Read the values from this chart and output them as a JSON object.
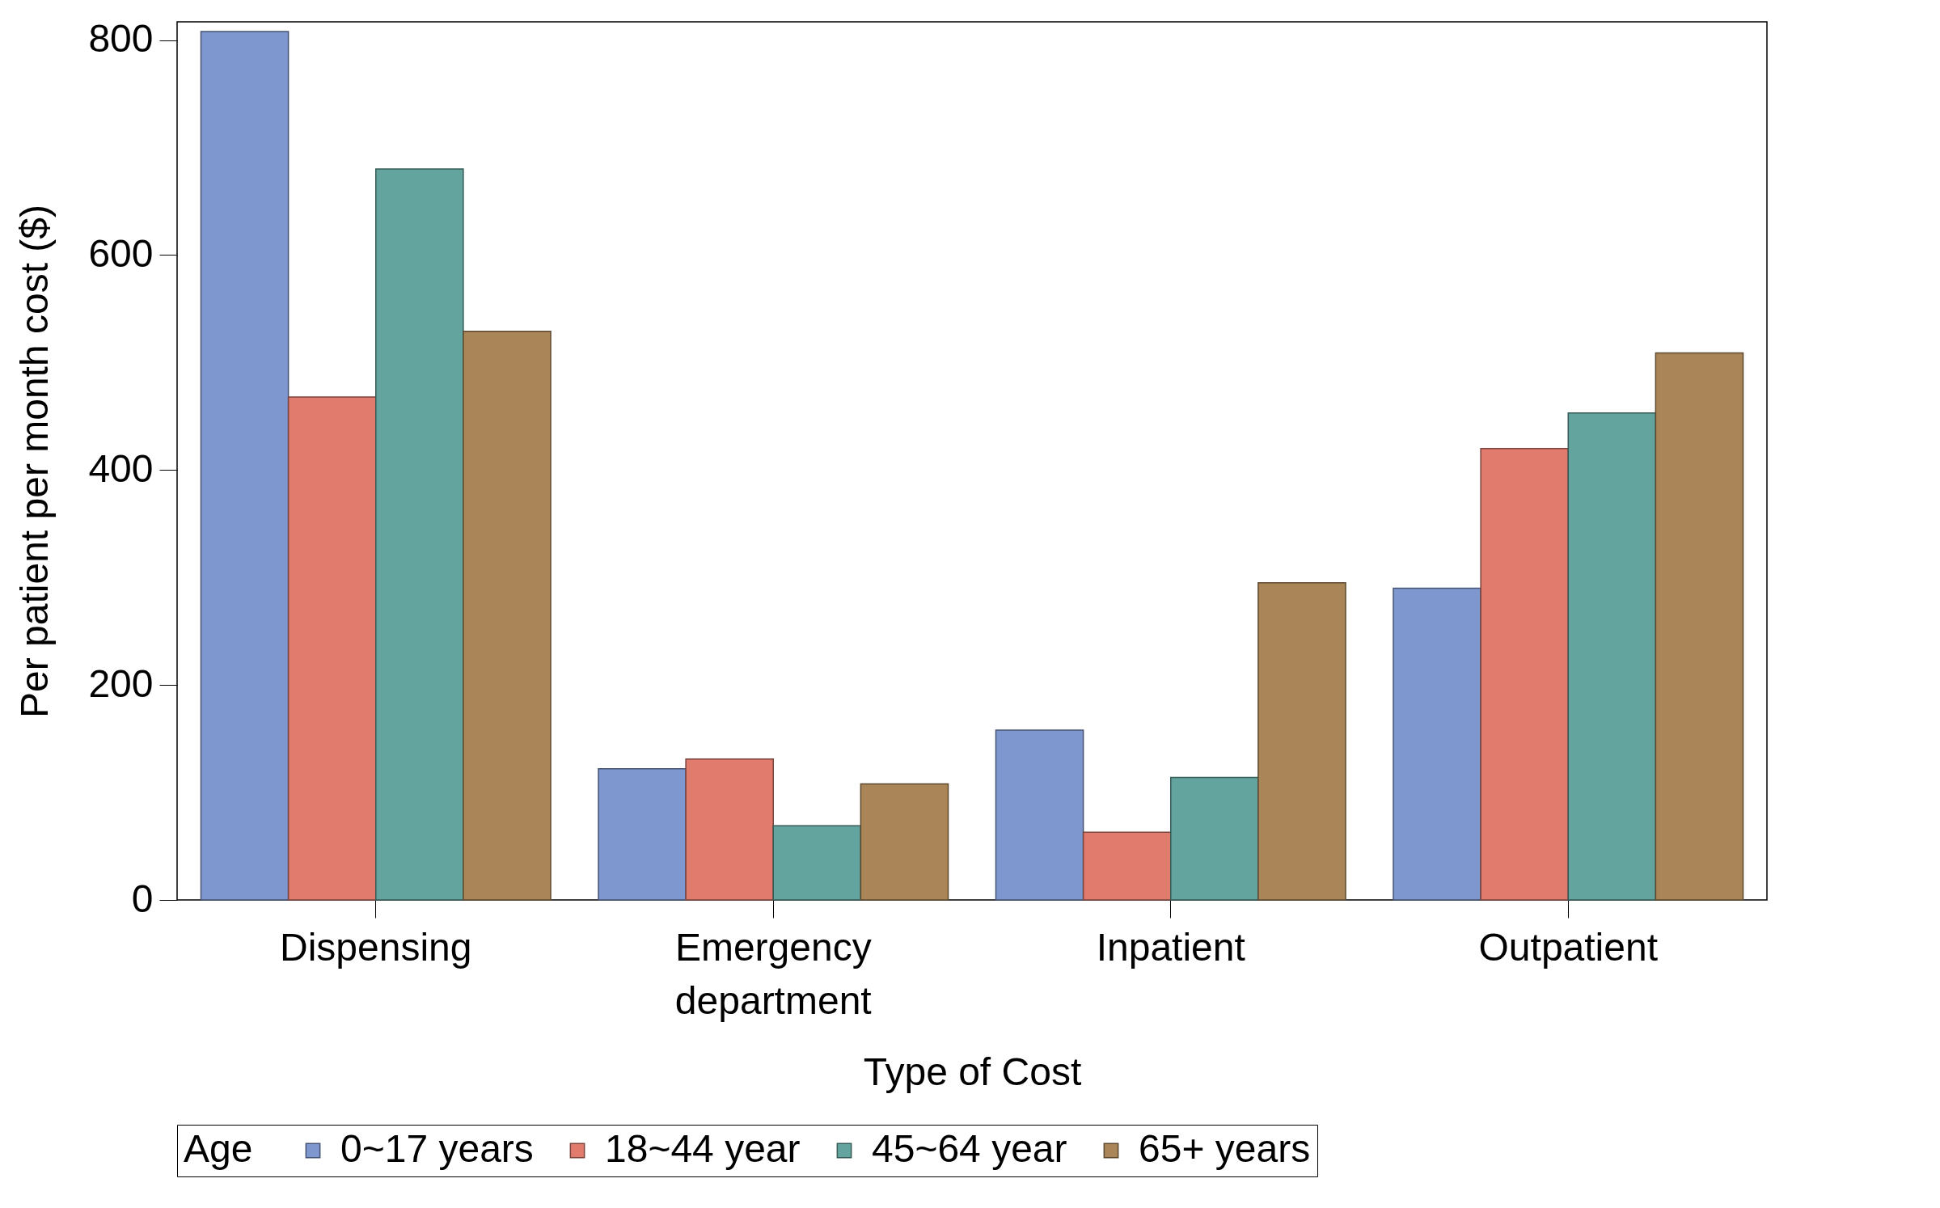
{
  "chart_data": {
    "type": "bar",
    "xlabel": "Type of Cost",
    "ylabel": "Per patient per month cost ($)",
    "legend_title": "Age",
    "categories": [
      "Dispensing",
      "Emergency department",
      "Inpatient",
      "Outpatient"
    ],
    "series": [
      {
        "name": "0~17 years",
        "color": "#7f97cf",
        "values": [
          808,
          122,
          158,
          290
        ]
      },
      {
        "name": "18~44 year",
        "color": "#e07b6e",
        "values": [
          468,
          131,
          63,
          420
        ]
      },
      {
        "name": "45~64 year",
        "color": "#63a59e",
        "values": [
          680,
          69,
          114,
          453
        ]
      },
      {
        "name": "65+ years",
        "color": "#a98558",
        "values": [
          529,
          108,
          295,
          509
        ]
      }
    ],
    "ylim": [
      0,
      817
    ],
    "yticks": [
      0,
      200,
      400,
      600,
      800
    ],
    "grid": false,
    "legend": "bottom"
  }
}
